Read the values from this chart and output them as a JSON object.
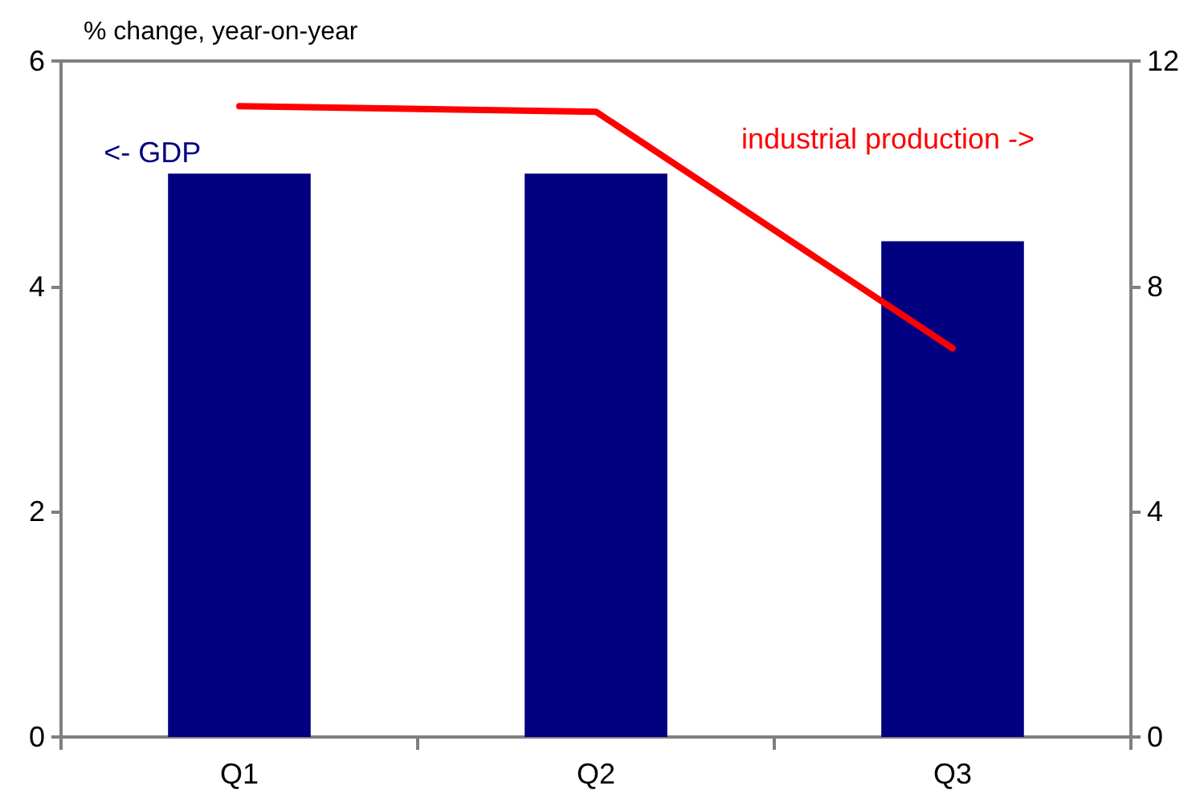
{
  "chart_data": {
    "type": "bar",
    "ylabel": "% change, year-on-year",
    "categories": [
      "Q1",
      "Q2",
      "Q3"
    ],
    "series": [
      {
        "name": "<- GDP",
        "color": "#000080",
        "values": [
          5.0,
          5.0,
          4.4
        ]
      },
      {
        "name": "industrial production ->",
        "type": "line",
        "axis": "y2",
        "color": "#ff0000",
        "values": [
          11.2,
          11.1,
          6.9
        ]
      }
    ],
    "ylim": [
      0,
      6
    ],
    "yticks": [
      0,
      2,
      4,
      6
    ],
    "y2lim": [
      0,
      12
    ],
    "y2ticks": [
      0,
      4,
      8,
      12
    ],
    "grid": false,
    "legend": false,
    "marker": "none",
    "line_style": "solid"
  }
}
